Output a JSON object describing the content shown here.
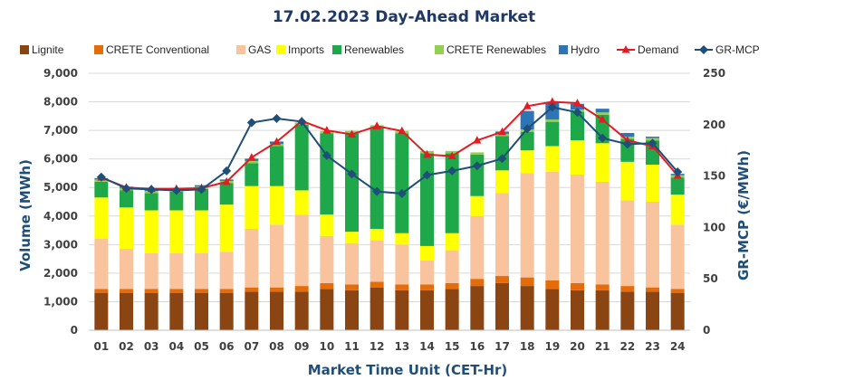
{
  "chart_data": {
    "type": "bar",
    "subtype": "stacked-bar-with-lines",
    "title": "17.02.2023  Day-Ahead Market",
    "xlabel": "Market Time Unit (CET-Hr)",
    "ylabel": "Volume (MWh)",
    "y2label": "GR-MCP (€/MWh)",
    "ylim": [
      0,
      9000
    ],
    "y2lim": [
      0,
      250
    ],
    "yticks": [
      "0",
      "1,000",
      "2,000",
      "3,000",
      "4,000",
      "5,000",
      "6,000",
      "7,000",
      "8,000",
      "9,000"
    ],
    "y2ticks": [
      "0",
      "50",
      "100",
      "150",
      "200",
      "250"
    ],
    "categories": [
      "01",
      "02",
      "03",
      "04",
      "05",
      "06",
      "07",
      "08",
      "09",
      "10",
      "11",
      "12",
      "13",
      "14",
      "15",
      "16",
      "17",
      "18",
      "19",
      "20",
      "21",
      "22",
      "23",
      "24"
    ],
    "series": [
      {
        "name": "Lignite",
        "kind": "bar",
        "color": "#8b4513",
        "values": [
          1300,
          1300,
          1300,
          1300,
          1300,
          1300,
          1350,
          1350,
          1350,
          1450,
          1400,
          1500,
          1400,
          1400,
          1450,
          1550,
          1650,
          1550,
          1450,
          1400,
          1400,
          1350,
          1350,
          1300
        ]
      },
      {
        "name": "CRETE Conventional",
        "kind": "bar",
        "color": "#e46c0a",
        "values": [
          150,
          150,
          150,
          150,
          150,
          150,
          150,
          150,
          200,
          200,
          200,
          200,
          200,
          200,
          200,
          250,
          250,
          300,
          300,
          250,
          200,
          200,
          150,
          150
        ]
      },
      {
        "name": "GAS",
        "kind": "bar",
        "color": "#f8c39d",
        "values": [
          1750,
          1400,
          1250,
          1250,
          1250,
          1300,
          2050,
          2200,
          2500,
          1650,
          1450,
          1450,
          1400,
          850,
          1150,
          2200,
          2900,
          3650,
          3800,
          3800,
          3600,
          3000,
          3000,
          2250
        ]
      },
      {
        "name": "Imports",
        "kind": "bar",
        "color": "#ffff00",
        "values": [
          1450,
          1450,
          1500,
          1500,
          1500,
          1650,
          1500,
          1350,
          850,
          750,
          400,
          400,
          400,
          500,
          600,
          700,
          800,
          800,
          900,
          1200,
          1350,
          1350,
          1300,
          1050
        ]
      },
      {
        "name": "Renewables",
        "kind": "bar",
        "color": "#1ea84a",
        "values": [
          550,
          600,
          600,
          650,
          750,
          750,
          800,
          1400,
          2300,
          2850,
          3450,
          3550,
          3500,
          3250,
          2800,
          1450,
          1200,
          650,
          850,
          1000,
          1000,
          800,
          850,
          600
        ]
      },
      {
        "name": "CRETE Renewables",
        "kind": "bar",
        "color": "#92d050",
        "values": [
          80,
          80,
          80,
          80,
          80,
          80,
          80,
          80,
          80,
          80,
          80,
          80,
          80,
          80,
          80,
          80,
          80,
          80,
          80,
          80,
          80,
          80,
          80,
          80
        ]
      },
      {
        "name": "Hydro",
        "kind": "bar",
        "color": "#2e75b6",
        "values": [
          50,
          50,
          50,
          50,
          50,
          50,
          80,
          80,
          0,
          0,
          0,
          0,
          0,
          0,
          0,
          0,
          80,
          650,
          600,
          200,
          130,
          130,
          50,
          50
        ]
      },
      {
        "name": "Demand",
        "kind": "line",
        "axis": "left",
        "color": "#e31b23",
        "marker": "triangle",
        "values": [
          5350,
          5000,
          4950,
          4950,
          4980,
          5200,
          6050,
          6600,
          7330,
          7000,
          6860,
          7150,
          6980,
          6150,
          6100,
          6650,
          6950,
          7850,
          8000,
          7950,
          7380,
          6650,
          6450,
          5420
        ]
      },
      {
        "name": "GR-MCP",
        "kind": "line",
        "axis": "right",
        "color": "#1f4e79",
        "marker": "diamond",
        "values": [
          149,
          138,
          137,
          136,
          137,
          155,
          202,
          206,
          203,
          170,
          152,
          135,
          133,
          151,
          155,
          160,
          167,
          196,
          217,
          212,
          187,
          181,
          182,
          154
        ]
      }
    ]
  }
}
